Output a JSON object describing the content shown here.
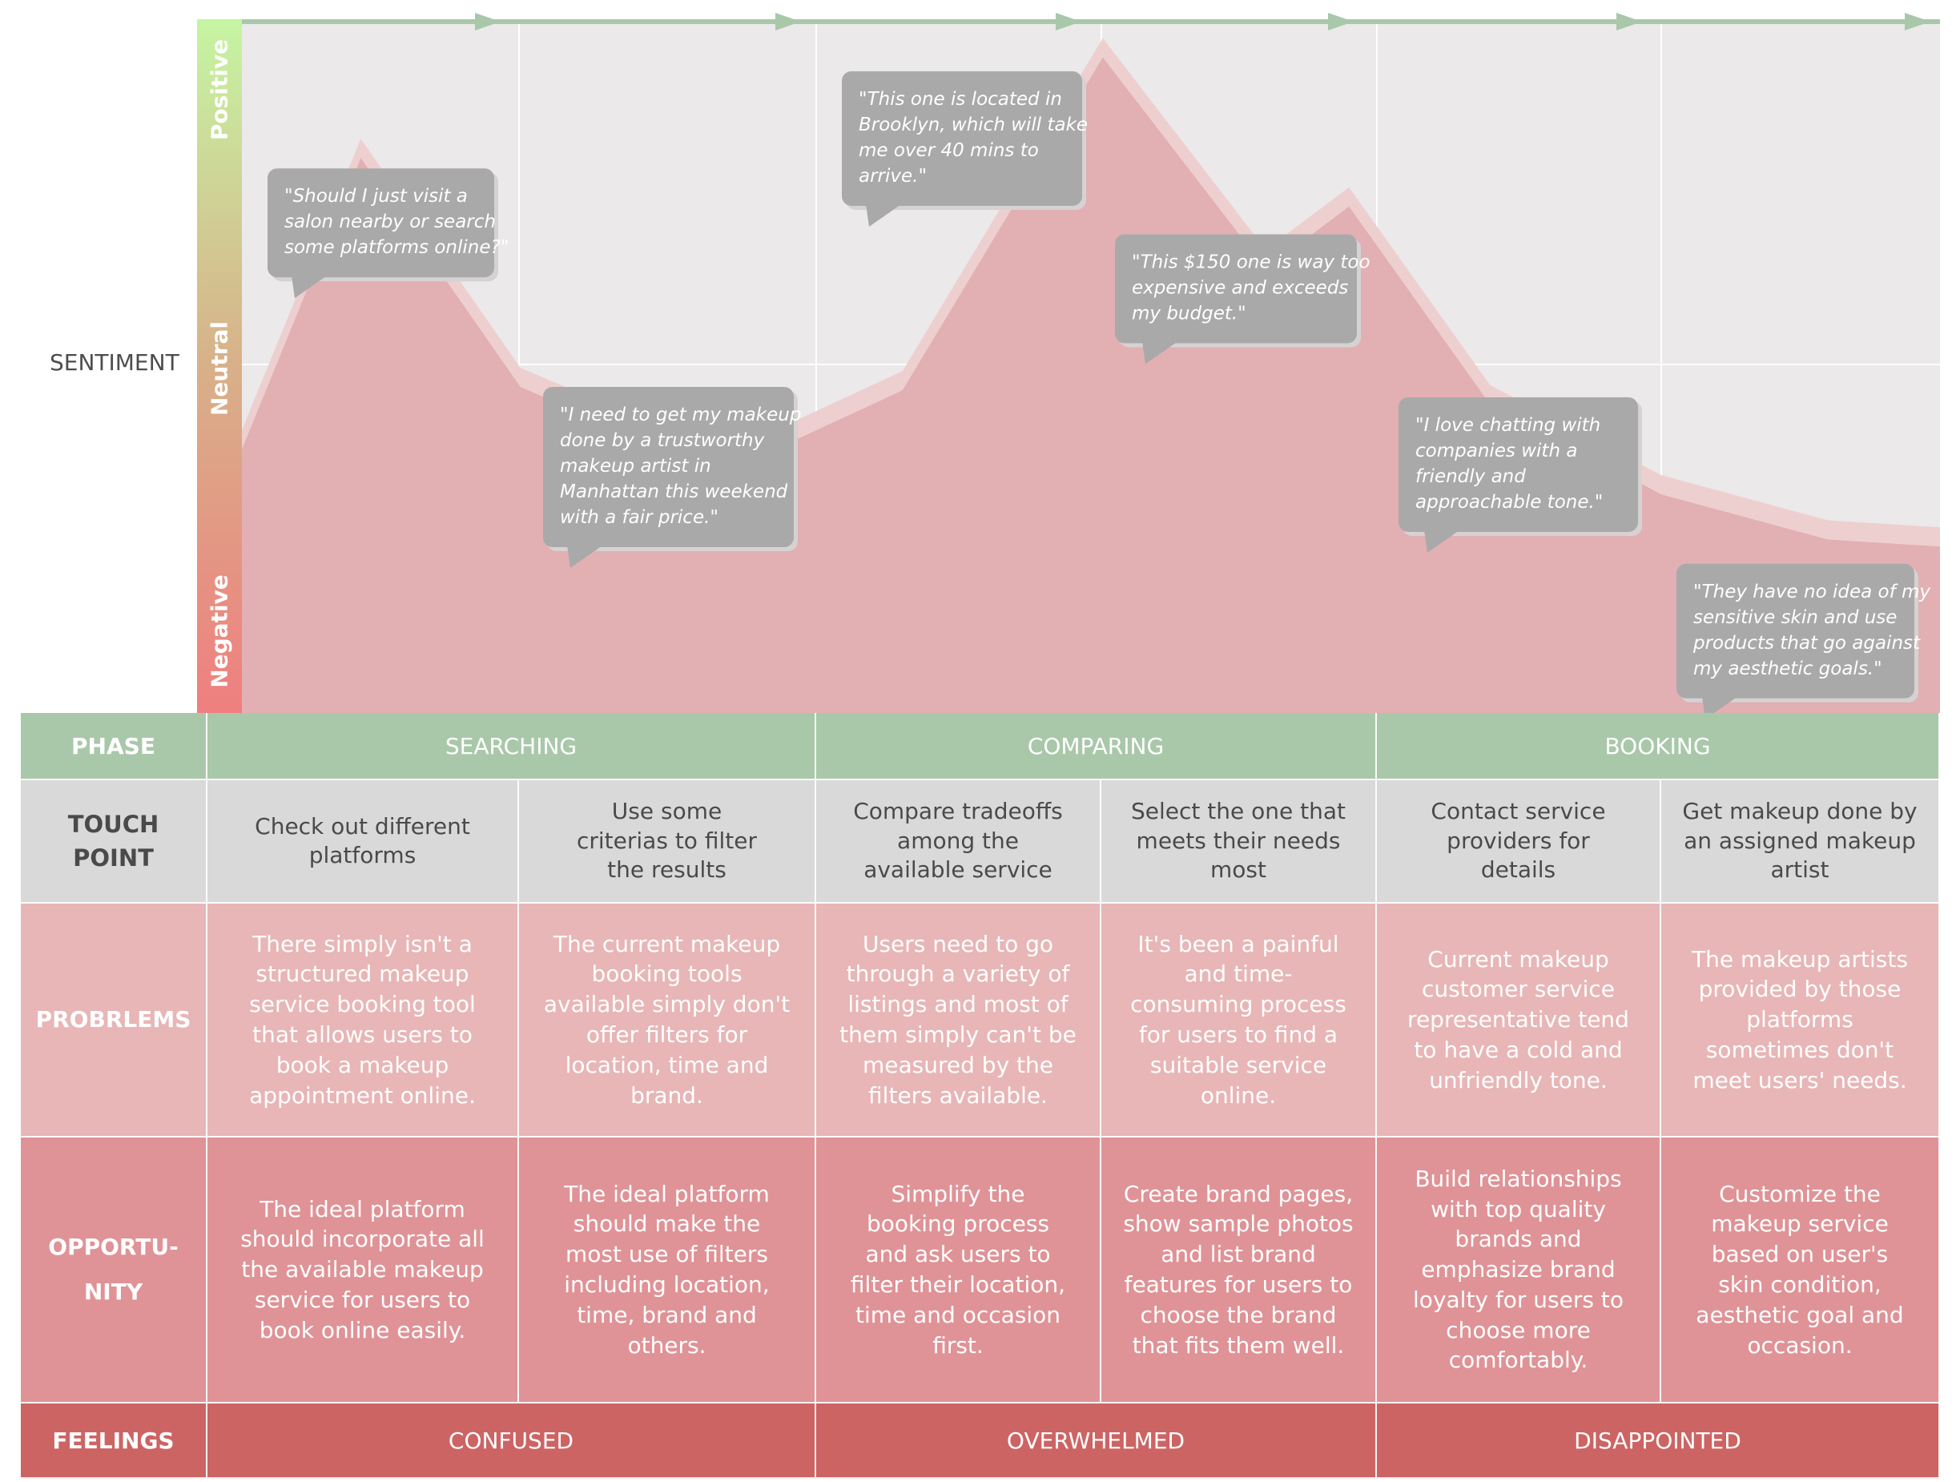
{
  "sentiment_label": "SENTIMENT",
  "levels": {
    "positive": "Positive",
    "neutral": "Neutral",
    "negative": "Negative"
  },
  "quotes": [
    {
      "lines": [
        "\"Should I just visit a",
        "salon nearby or search",
        "some platforms online?\""
      ],
      "sentiment": 0.785
    },
    {
      "lines": [
        "\"I need to get my makeup",
        "done by a trustworthy",
        "makeup artist in",
        "Manhattan this weekend",
        "with a fair price.\""
      ],
      "sentiment": 0.47
    },
    {
      "lines": [
        "\"This one is located in",
        "Brooklyn, which will take",
        "me over 40 mins to",
        "arrive.\""
      ],
      "sentiment": 0.925
    },
    {
      "lines": [
        "\"This $150 one is way too",
        "expensive and exceeds",
        "my budget.\""
      ],
      "sentiment": 0.69
    },
    {
      "lines": [
        "\"I love chatting with",
        "companies with a",
        "friendly and",
        "approachable tone.\""
      ],
      "sentiment": 0.455
    },
    {
      "lines": [
        "\"They have no idea of my",
        "sensitive skin and use",
        "products that go against",
        "my aesthetic goals.\""
      ],
      "sentiment": 0.215
    }
  ],
  "chart_data": {
    "type": "area",
    "title": "",
    "ylabel": "SENTIMENT",
    "ylim": [
      0,
      1
    ],
    "x": [
      0,
      0.07,
      0.164,
      0.283,
      0.389,
      0.507,
      0.603,
      0.652,
      0.735,
      0.836,
      0.934,
      1.0
    ],
    "values": [
      0.38,
      0.8,
      0.47,
      0.345,
      0.465,
      0.945,
      0.64,
      0.73,
      0.445,
      0.315,
      0.25,
      0.24
    ]
  },
  "table": {
    "headers": {
      "phase": "PHASE",
      "touch_point": [
        "TOUCH",
        "POINT"
      ],
      "problems": "PROBRLEMS",
      "opportunity": [
        "OPPORTU-",
        "NITY"
      ],
      "feelings": "FEELINGS"
    },
    "phases": [
      "SEARCHING",
      "COMPARING",
      "BOOKING"
    ],
    "touch_points": [
      "Check out different platforms",
      "Use some criterias to filter the results",
      "Compare tradeoffs among the available service",
      "Select the one that meets their needs most",
      "Contact service providers for details",
      "Get makeup done by an assigned makeup artist"
    ],
    "problems": [
      "There simply isn't a structured makeup service booking tool that allows users to book a makeup appointment online.",
      "The current makeup booking tools available simply don't offer filters for location, time and brand.",
      "Users need to go through a variety of listings and most of them simply can't be measured by the filters available.",
      "It's been a painful and time-consuming process for users to find a suitable service online.",
      "Current makeup customer service representative tend to have a cold and unfriendly tone.",
      "The makeup artists provided by those platforms sometimes don't meet users' needs."
    ],
    "opportunities": [
      "The ideal platform should incorporate all the available makeup service for users to book online easily.",
      "The ideal platform should make the most use of filters including location, time, brand and others.",
      "Simplify the booking process and ask users to filter their location, time and occasion first.",
      "Create brand pages, show sample photos and list brand features for users to choose the brand that fits them well.",
      "Build relationships with top quality brands and emphasize brand loyalty for users to choose more comfortably.",
      "Customize the makeup service based on user's skin condition, aesthetic goal and occasion."
    ],
    "feelings": [
      "CONFUSED",
      "OVERWHELMED",
      "DISAPPOINTED"
    ]
  },
  "colors": {
    "phase": "#a9c8aa",
    "touch": "#d9d9d9",
    "problem": "#e8b6b7",
    "opportunity": "#df9397",
    "feelings": "#cd6464",
    "area": "#e2b0b2",
    "bubble": "#a9a9a9"
  }
}
